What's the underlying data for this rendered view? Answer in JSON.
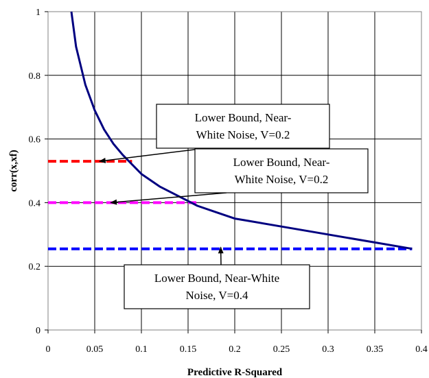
{
  "chart_data": {
    "type": "line",
    "xlabel": "Predictive R-Squared",
    "ylabel": "corr(x,xf)",
    "xlim": [
      0,
      0.4
    ],
    "ylim": [
      0,
      1
    ],
    "x_ticks": [
      0,
      0.05,
      0.1,
      0.15,
      0.2,
      0.25,
      0.3,
      0.35,
      0.4
    ],
    "y_ticks": [
      0,
      0.2,
      0.4,
      0.6,
      0.8,
      1
    ],
    "x_tick_labels": [
      "0",
      "0.05",
      "0.1",
      "0.15",
      "0.2",
      "0.25",
      "0.3",
      "0.35",
      "0.4"
    ],
    "y_tick_labels": [
      "0",
      "0.2",
      "0.4",
      "0.6",
      "0.8",
      "1"
    ],
    "grid": true,
    "series": [
      {
        "color": "#000080",
        "style": "solid",
        "x": [
          0.025,
          0.03,
          0.04,
          0.05,
          0.06,
          0.07,
          0.08,
          0.09,
          0.1,
          0.12,
          0.14,
          0.16,
          0.18,
          0.2,
          0.21,
          0.25,
          0.3,
          0.35,
          0.39
        ],
        "y": [
          1.0,
          0.89,
          0.77,
          0.69,
          0.63,
          0.585,
          0.55,
          0.52,
          0.49,
          0.45,
          0.42,
          0.39,
          0.37,
          0.35,
          0.345,
          0.325,
          0.3,
          0.275,
          0.255
        ]
      },
      {
        "color": "#ff0000",
        "style": "dashed",
        "x": [
          0,
          0.09
        ],
        "y": [
          0.53,
          0.53
        ]
      },
      {
        "color": "#ff00ff",
        "style": "dashed",
        "x": [
          0,
          0.16
        ],
        "y": [
          0.4,
          0.4
        ]
      },
      {
        "color": "#0000ff",
        "style": "dashed",
        "x": [
          0,
          0.39
        ],
        "y": [
          0.255,
          0.255
        ]
      }
    ],
    "annotations": [
      {
        "lines": [
          "Lower Bound, Near-",
          "White Noise, V=0.2"
        ],
        "arrow_to": [
          0.055,
          0.53
        ]
      },
      {
        "lines": [
          "Lower Bound, Near-",
          "White Noise, V=0.2"
        ],
        "arrow_to": [
          0.067,
          0.4
        ]
      },
      {
        "lines": [
          "Lower Bound, Near-White",
          "Noise, V=0.4"
        ],
        "arrow_to": [
          0.185,
          0.26
        ]
      }
    ]
  }
}
